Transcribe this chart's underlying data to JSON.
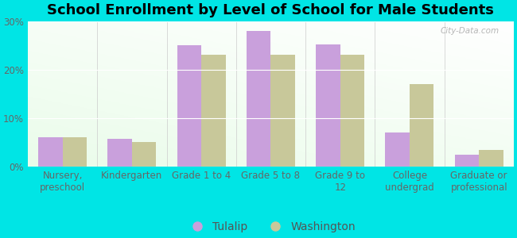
{
  "title": "School Enrollment by Level of School for Male Students",
  "categories": [
    "Nursery,\npreschool",
    "Kindergarten",
    "Grade 1 to 4",
    "Grade 5 to 8",
    "Grade 9 to\n12",
    "College\nundergrad",
    "Graduate or\nprofessional"
  ],
  "tulalip_values": [
    6.0,
    5.8,
    25.0,
    28.0,
    25.2,
    7.0,
    2.5
  ],
  "washington_values": [
    6.1,
    5.0,
    23.0,
    23.0,
    23.0,
    17.0,
    3.5
  ],
  "tulalip_color": "#c9a0dc",
  "washington_color": "#c8c89a",
  "background_color": "#00e5e5",
  "ylim": [
    0,
    30
  ],
  "yticks": [
    0,
    10,
    20,
    30
  ],
  "ytick_labels": [
    "0%",
    "10%",
    "20%",
    "30%"
  ],
  "bar_width": 0.35,
  "title_fontsize": 13,
  "tick_fontsize": 8.5,
  "legend_fontsize": 10,
  "watermark": "City-Data.com"
}
